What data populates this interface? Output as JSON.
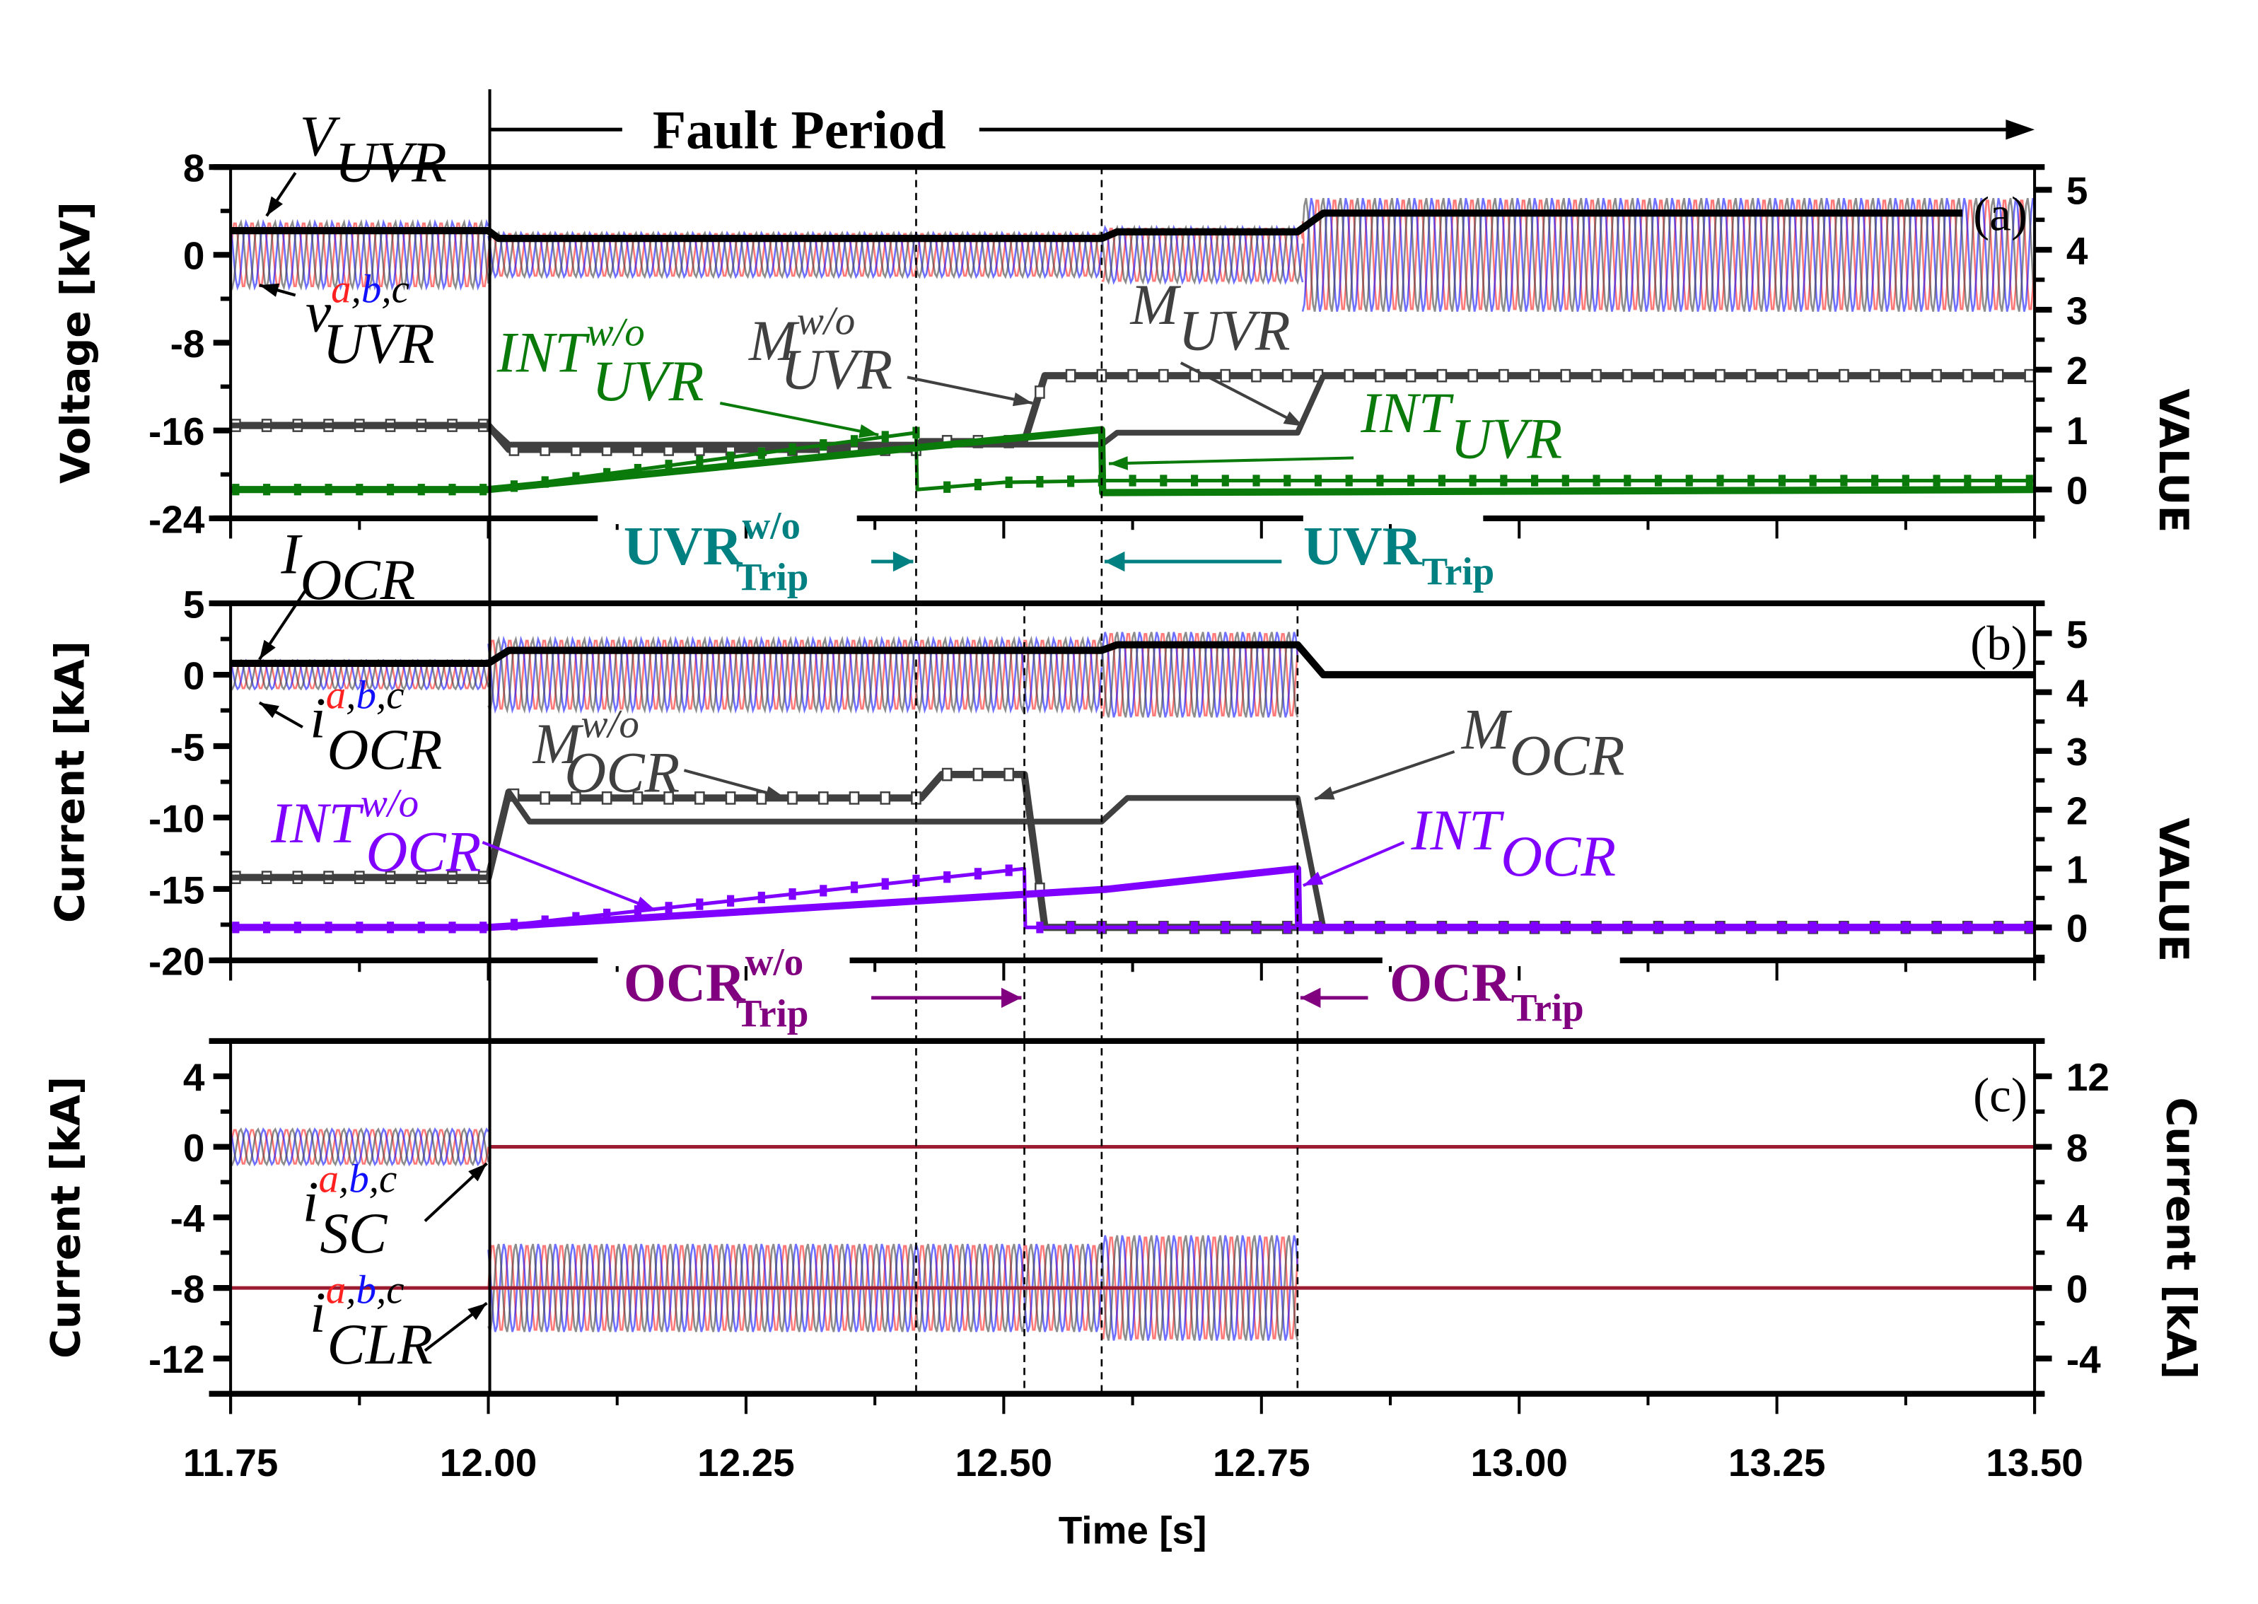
{
  "chart_data": {
    "type": "line",
    "x_axis": {
      "label": "Time [s]",
      "range": [
        11.75,
        13.5
      ],
      "ticks": [
        "11.75",
        "12.00",
        "12.25",
        "12.50",
        "12.75",
        "13.00",
        "13.25",
        "13.50"
      ]
    },
    "fault_period": {
      "label": "Fault Period",
      "start": 12.0
    },
    "trip_times": [
      12.415,
      12.52,
      12.595,
      12.785
    ],
    "colors": {
      "phase_a": "#ff2020",
      "phase_b": "#1010ff",
      "phase_c": "#404040",
      "uvr_int": "#0a7a0a",
      "ocr_int": "#8000ff",
      "marker": "#404040",
      "uvr_trip": "#008080",
      "ocr_trip": "#800080",
      "zero_line": "#9b1b30"
    },
    "panels": [
      {
        "id": "a",
        "panel_label": "(a)",
        "left_axis": {
          "label": "Voltage [kV]",
          "range": [
            -24,
            8
          ],
          "ticks": [
            8,
            0,
            -8,
            -16,
            -24
          ]
        },
        "right_axis": {
          "label": "VALUE",
          "range": [
            -0.48,
            5.38
          ],
          "ticks": [
            5,
            4,
            3,
            2,
            1,
            0
          ]
        },
        "series": [
          {
            "name": "v_UVR a,b,c",
            "kind": "three-phase",
            "axis": "left",
            "segments": [
              [
                11.75,
                12.0,
                3.0
              ],
              [
                12.0,
                12.595,
                2.0
              ],
              [
                12.595,
                12.79,
                2.5
              ],
              [
                12.79,
                13.5,
                5.2
              ]
            ]
          },
          {
            "name": "V_UVR",
            "axis": "left",
            "color": "#000000",
            "width": 5,
            "points": [
              [
                11.75,
                2.2
              ],
              [
                12.0,
                2.2
              ],
              [
                12.01,
                1.5
              ],
              [
                12.595,
                1.5
              ],
              [
                12.61,
                2.1
              ],
              [
                12.785,
                2.1
              ],
              [
                12.81,
                3.8
              ],
              [
                13.43,
                3.8
              ]
            ]
          },
          {
            "name": "M_UVR w/o",
            "axis": "right",
            "color": "#404040",
            "width": 5,
            "markers": "hollow",
            "points": [
              [
                11.75,
                1.07
              ],
              [
                12.0,
                1.07
              ],
              [
                12.02,
                0.67
              ],
              [
                12.415,
                0.67
              ],
              [
                12.42,
                0.8
              ],
              [
                12.52,
                0.8
              ],
              [
                12.54,
                1.9
              ],
              [
                13.5,
                1.9
              ]
            ]
          },
          {
            "name": "M_UVR",
            "axis": "right",
            "color": "#404040",
            "width": 4,
            "points": [
              [
                11.75,
                1.07
              ],
              [
                12.0,
                1.07
              ],
              [
                12.02,
                0.75
              ],
              [
                12.595,
                0.75
              ],
              [
                12.61,
                0.95
              ],
              [
                12.785,
                0.95
              ],
              [
                12.81,
                1.9
              ]
            ]
          },
          {
            "name": "INT_UVR w/o",
            "axis": "right",
            "color": "#0a7a0a",
            "width": 2.5,
            "markers": "filled",
            "points": [
              [
                11.75,
                0
              ],
              [
                12.0,
                0
              ],
              [
                12.415,
                0.95
              ],
              [
                12.416,
                0
              ],
              [
                12.5,
                0.12
              ],
              [
                12.6,
                0.15
              ],
              [
                13.5,
                0.15
              ]
            ]
          },
          {
            "name": "INT_UVR",
            "axis": "right",
            "color": "#0a7a0a",
            "width": 5,
            "points": [
              [
                11.75,
                0
              ],
              [
                12.0,
                0
              ],
              [
                12.595,
                1.0
              ],
              [
                12.596,
                -0.05
              ],
              [
                13.5,
                0
              ]
            ]
          }
        ],
        "annotations": [
          {
            "main": "V",
            "sub": "UVR",
            "color": "#000000"
          },
          {
            "main": "v",
            "sup": "a,b,c",
            "sub": "UVR",
            "color": "#000000"
          },
          {
            "main": "INT",
            "sup": "w/o",
            "sub": "UVR",
            "color": "#0a7a0a"
          },
          {
            "main": "M",
            "sup": "w/o",
            "sub": "UVR",
            "color": "#404040"
          },
          {
            "main": "M",
            "sub": "UVR",
            "color": "#404040"
          },
          {
            "main": "INT",
            "sub": "UVR",
            "color": "#0a7a0a"
          }
        ],
        "trips": [
          {
            "main": "UVR",
            "sup": "w/o",
            "sub": "Trip",
            "color": "#008080",
            "time": 12.415
          },
          {
            "main": "UVR",
            "sub": "Trip",
            "color": "#008080",
            "time": 12.595
          }
        ]
      },
      {
        "id": "b",
        "panel_label": "(b)",
        "left_axis": {
          "label": "Current [kA]",
          "range": [
            -20,
            5
          ],
          "ticks": [
            5,
            0,
            -5,
            -10,
            -15,
            -20
          ]
        },
        "right_axis": {
          "label": "VALUE",
          "range": [
            -0.56,
            5.51
          ],
          "ticks": [
            5,
            4,
            3,
            2,
            1,
            0
          ]
        },
        "series": [
          {
            "name": "i_OCR a,b,c",
            "kind": "three-phase",
            "axis": "left",
            "segments": [
              [
                11.75,
                12.0,
                1.0
              ],
              [
                12.0,
                12.595,
                2.5
              ],
              [
                12.595,
                12.785,
                3.0
              ]
            ]
          },
          {
            "name": "I_OCR",
            "axis": "left",
            "color": "#000000",
            "width": 5,
            "points": [
              [
                11.75,
                0.8
              ],
              [
                12.0,
                0.8
              ],
              [
                12.02,
                1.7
              ],
              [
                12.595,
                1.7
              ],
              [
                12.61,
                2.1
              ],
              [
                12.785,
                2.1
              ],
              [
                12.81,
                0
              ],
              [
                13.5,
                0
              ]
            ]
          },
          {
            "name": "M_OCR w/o",
            "axis": "right",
            "color": "#404040",
            "width": 5,
            "markers": "hollow",
            "points": [
              [
                11.75,
                0.85
              ],
              [
                12.0,
                0.85
              ],
              [
                12.02,
                2.3
              ],
              [
                12.03,
                2.2
              ],
              [
                12.42,
                2.2
              ],
              [
                12.44,
                2.6
              ],
              [
                12.52,
                2.6
              ],
              [
                12.54,
                0
              ],
              [
                13.5,
                0
              ]
            ]
          },
          {
            "name": "M_OCR",
            "axis": "right",
            "color": "#404040",
            "width": 4,
            "points": [
              [
                11.75,
                0.85
              ],
              [
                12.0,
                0.85
              ],
              [
                12.02,
                2.3
              ],
              [
                12.04,
                1.8
              ],
              [
                12.595,
                1.8
              ],
              [
                12.62,
                2.2
              ],
              [
                12.785,
                2.2
              ],
              [
                12.81,
                0
              ],
              [
                13.5,
                0
              ]
            ]
          },
          {
            "name": "INT_OCR w/o",
            "axis": "right",
            "color": "#8000ff",
            "width": 2.5,
            "markers": "filled",
            "points": [
              [
                11.75,
                0
              ],
              [
                12.0,
                0
              ],
              [
                12.52,
                1.0
              ],
              [
                12.521,
                0
              ],
              [
                13.5,
                0
              ]
            ]
          },
          {
            "name": "INT_OCR",
            "axis": "right",
            "color": "#8000ff",
            "width": 5,
            "points": [
              [
                11.75,
                0
              ],
              [
                12.0,
                0
              ],
              [
                12.6,
                0.65
              ],
              [
                12.785,
                1.0
              ],
              [
                12.786,
                0
              ],
              [
                13.5,
                0
              ]
            ]
          }
        ],
        "annotations": [
          {
            "main": "I",
            "sub": "OCR",
            "color": "#000000"
          },
          {
            "main": "i",
            "sup": "a,b,c",
            "sub": "OCR",
            "color": "#000000"
          },
          {
            "main": "M",
            "sup": "w/o",
            "sub": "OCR",
            "color": "#404040"
          },
          {
            "main": "INT",
            "sup": "w/o",
            "sub": "OCR",
            "color": "#8000ff"
          },
          {
            "main": "M",
            "sub": "OCR",
            "color": "#404040"
          },
          {
            "main": "INT",
            "sub": "OCR",
            "color": "#8000ff"
          }
        ],
        "trips": [
          {
            "main": "OCR",
            "sup": "w/o",
            "sub": "Trip",
            "color": "#800080",
            "time": 12.52
          },
          {
            "main": "OCR",
            "sub": "Trip",
            "color": "#800080",
            "time": 12.785
          }
        ]
      },
      {
        "id": "c",
        "panel_label": "(c)",
        "left_axis": {
          "label": "Current [kA]",
          "range": [
            -14,
            6
          ],
          "ticks": [
            4,
            0,
            -4,
            -8,
            -12
          ]
        },
        "right_axis": {
          "label": "Current [kA]",
          "range": [
            -6,
            14
          ],
          "ticks": [
            12,
            8,
            4,
            0,
            -4
          ]
        },
        "series": [
          {
            "name": "i_SC a,b,c",
            "kind": "three-phase",
            "axis": "left",
            "segments": [
              [
                11.75,
                12.0,
                1.0
              ]
            ]
          },
          {
            "name": "i_SC zero",
            "axis": "left",
            "color": "#9b1b30",
            "width": 2.5,
            "points": [
              [
                12.0,
                0
              ],
              [
                13.5,
                0
              ]
            ]
          },
          {
            "name": "i_CLR a,b,c",
            "kind": "three-phase",
            "axis": "right",
            "segments": [
              [
                12.0,
                12.595,
                2.5
              ],
              [
                12.595,
                12.785,
                3.0
              ]
            ]
          },
          {
            "name": "i_CLR zero",
            "axis": "right",
            "color": "#9b1b30",
            "width": 2.5,
            "points": [
              [
                11.75,
                0
              ],
              [
                12.0,
                0
              ],
              [
                12.785,
                0
              ],
              [
                13.5,
                0
              ]
            ]
          }
        ],
        "annotations": [
          {
            "main": "i",
            "sup": "a,b,c",
            "sub": "SC",
            "color": "#000000"
          },
          {
            "main": "i",
            "sup": "a,b,c",
            "sub": "CLR",
            "color": "#000000"
          }
        ],
        "trips": []
      }
    ]
  }
}
